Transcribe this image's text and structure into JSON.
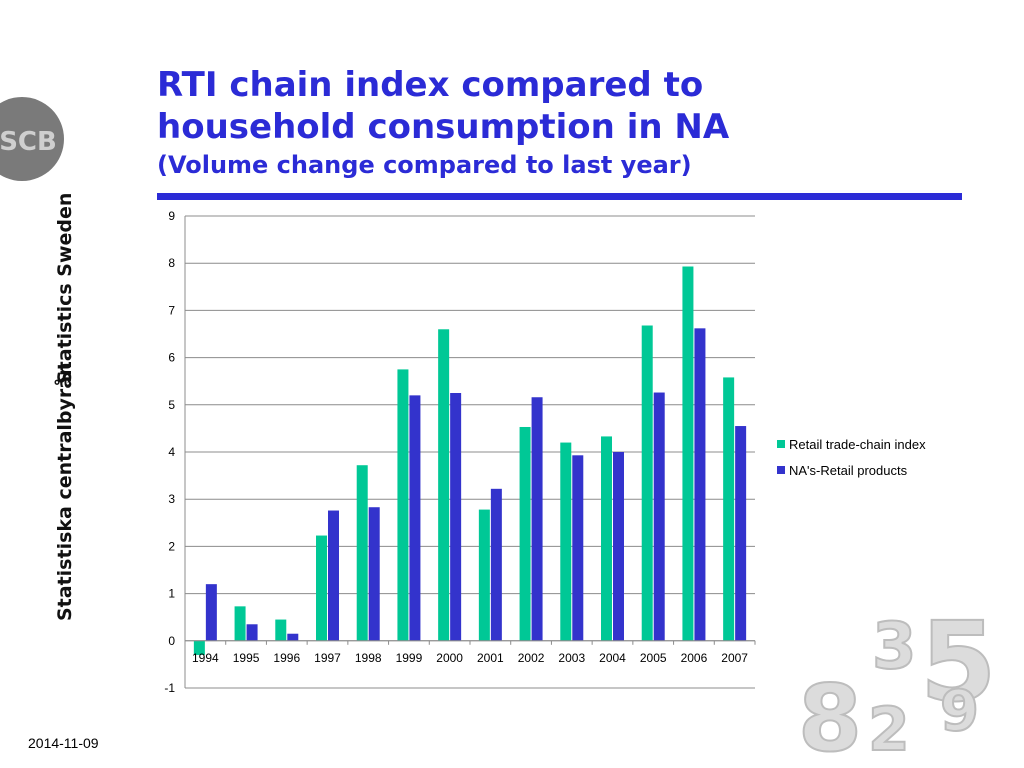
{
  "branding": {
    "logo_text": "SCB",
    "org_english": "Statistics Sweden",
    "org_swedish": "Statistiska centralbyrån"
  },
  "slide": {
    "title_line1": "RTI chain index compared to",
    "title_line2": "household consumption in NA",
    "subtitle": "(Volume change compared to last year)",
    "date": "2014-11-09"
  },
  "colors": {
    "accent": "#2b2bd6",
    "series_retail": "#00c896",
    "series_na": "#3333cc"
  },
  "decoration": {
    "digits": [
      "8",
      "3",
      "5",
      "2",
      "9"
    ]
  },
  "chart_data": {
    "type": "bar",
    "categories": [
      "1994",
      "1995",
      "1996",
      "1997",
      "1998",
      "1999",
      "2000",
      "2001",
      "2002",
      "2003",
      "2004",
      "2005",
      "2006",
      "2007"
    ],
    "series": [
      {
        "name": "Retail trade-chain index",
        "values": [
          -0.3,
          0.73,
          0.45,
          2.23,
          3.72,
          5.75,
          6.6,
          2.78,
          4.53,
          4.2,
          4.33,
          6.68,
          7.93,
          5.58
        ]
      },
      {
        "name": "NA's-Retail products",
        "values": [
          1.2,
          0.35,
          0.15,
          2.76,
          2.83,
          5.2,
          5.25,
          3.22,
          5.16,
          3.93,
          4.0,
          5.26,
          6.62,
          4.55
        ]
      }
    ],
    "ylim": [
      -1,
      9
    ],
    "yticks": [
      "-1",
      "0",
      "1",
      "2",
      "3",
      "4",
      "5",
      "6",
      "7",
      "8",
      "9"
    ],
    "grid": true,
    "legend_position": "right"
  }
}
